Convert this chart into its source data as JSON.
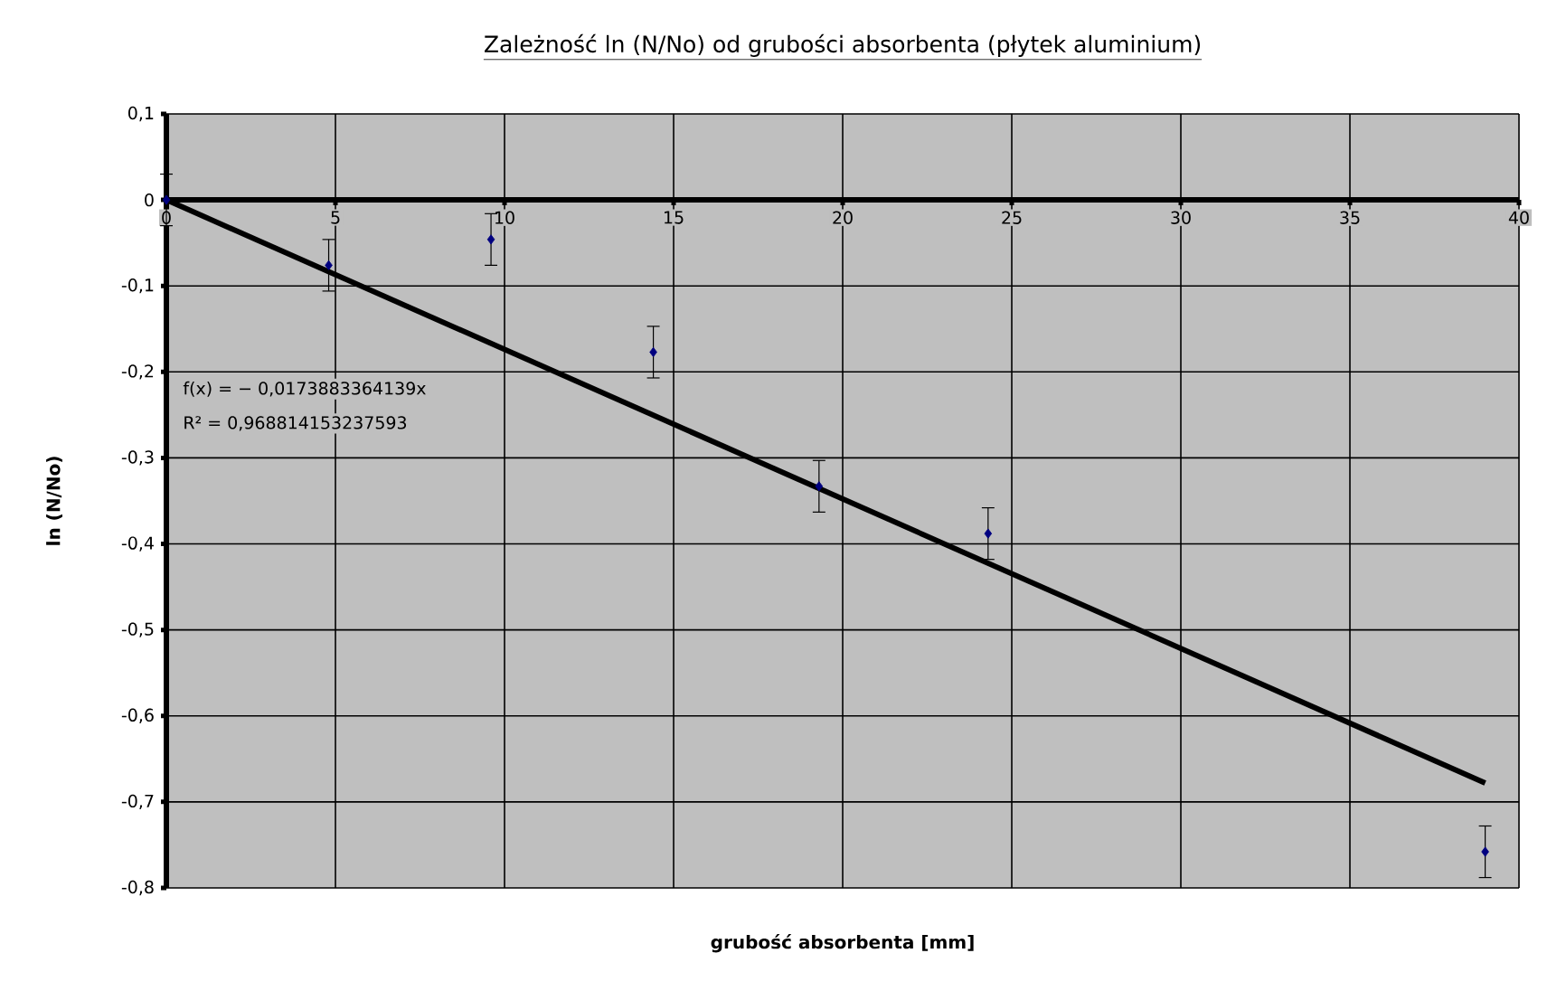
{
  "chart_data": {
    "type": "scatter",
    "title": "Zależność ln (N/No) od grubości absorbenta (płytek aluminium)",
    "xlabel": "grubość absorbenta [mm]",
    "ylabel": "ln (N/No)",
    "series": [
      {
        "marker": "diamond",
        "color": "#000080",
        "x": [
          0,
          4.8,
          9.6,
          14.4,
          19.3,
          24.3,
          39.0
        ],
        "values": [
          0,
          -0.076,
          -0.046,
          -0.177,
          -0.333,
          -0.388,
          -0.758
        ],
        "errors": [
          0.03,
          0.03,
          0.03,
          0.03,
          0.03,
          0.03,
          0.03
        ]
      },
      {
        "type": "line",
        "marker": "none",
        "color": "#000000",
        "x": [
          0,
          39.0
        ],
        "values": [
          0,
          -0.678
        ]
      }
    ],
    "annotations": [
      "f(x) = − 0,0173883364139x",
      "R² = 0,968814153237593"
    ],
    "xlim": [
      0,
      40
    ],
    "ylim": [
      -0.8,
      0.1
    ],
    "xticks": [
      0,
      5,
      10,
      15,
      20,
      25,
      30,
      35,
      40
    ],
    "yticks": [
      {
        "value": 0.1,
        "label": "0,1"
      },
      {
        "value": 0,
        "label": "0"
      },
      {
        "value": -0.1,
        "label": "-0,1"
      },
      {
        "value": -0.2,
        "label": "-0,2"
      },
      {
        "value": -0.3,
        "label": "-0,3"
      },
      {
        "value": -0.4,
        "label": "-0,4"
      },
      {
        "value": -0.5,
        "label": "-0,5"
      },
      {
        "value": -0.6,
        "label": "-0,6"
      },
      {
        "value": -0.7,
        "label": "-0,7"
      },
      {
        "value": -0.8,
        "label": "-0,8"
      }
    ],
    "grid": true
  }
}
